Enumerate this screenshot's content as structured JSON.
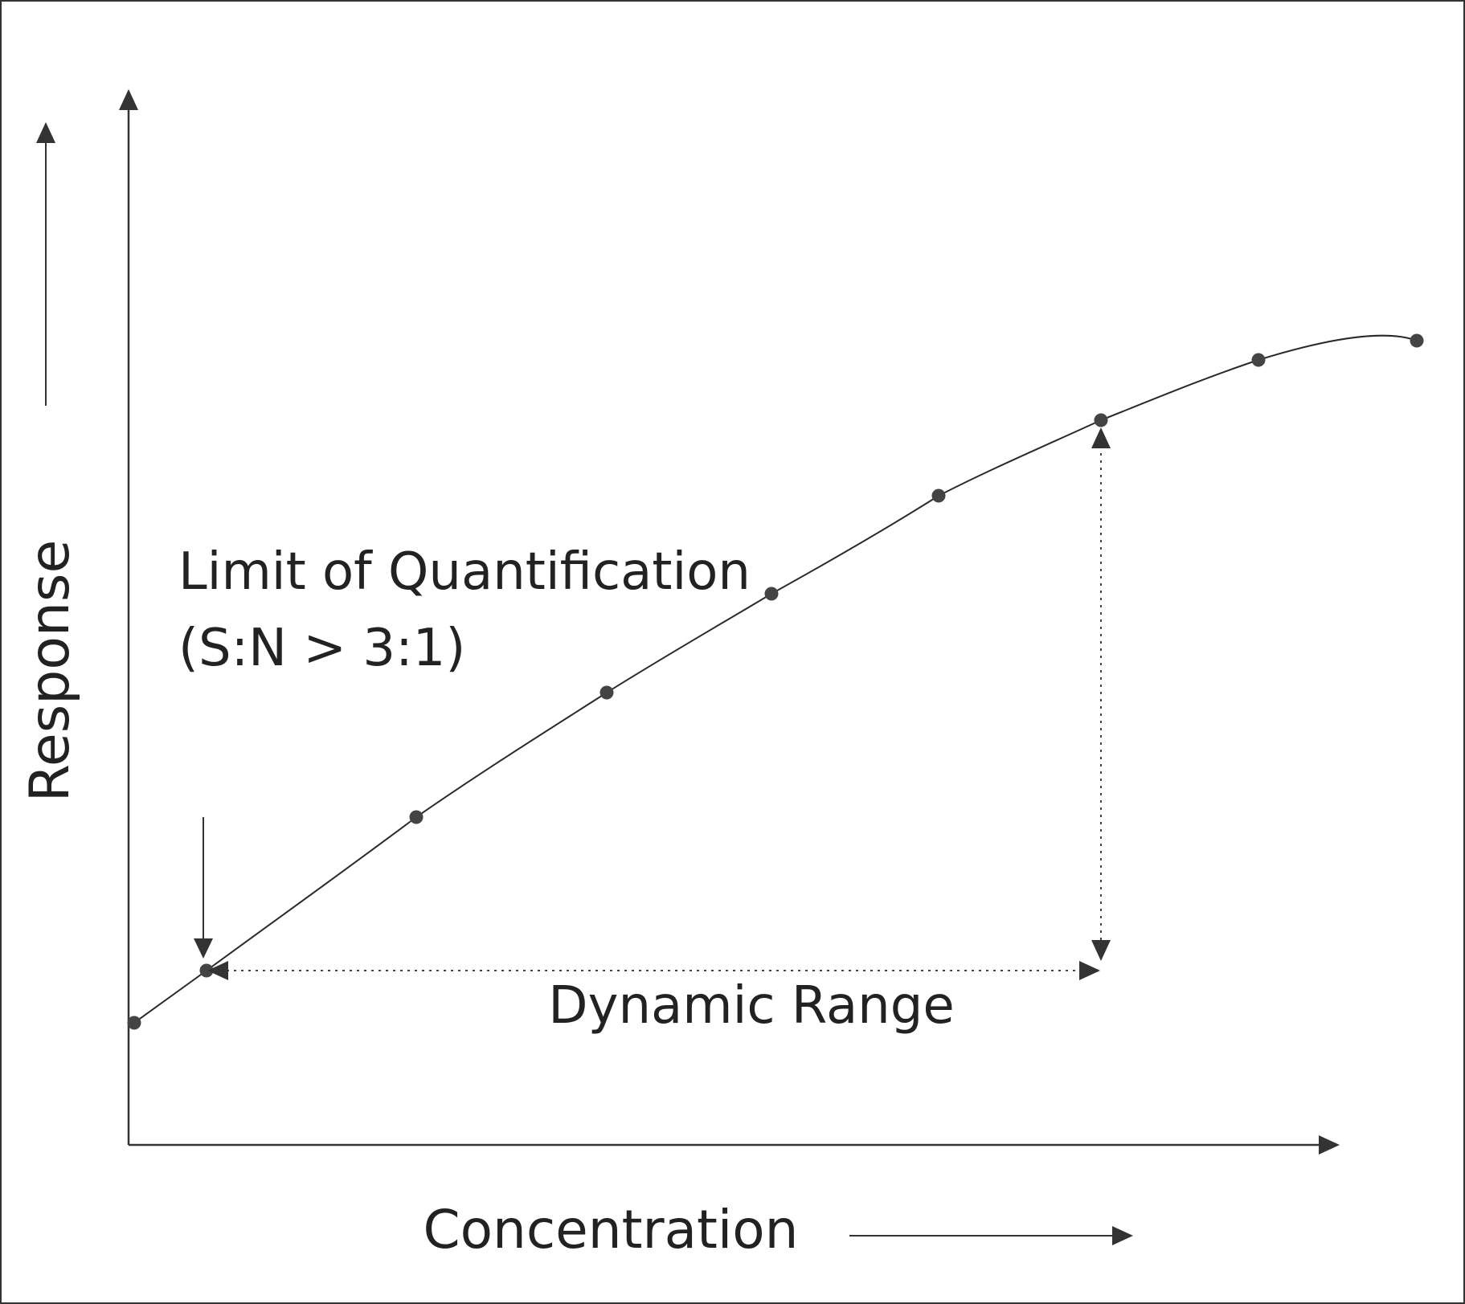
{
  "diagram": {
    "axis_labels": {
      "y": "Response",
      "x": "Concentration"
    },
    "annotations": {
      "loq_line1": "Limit of Quantification",
      "loq_line2": "(S:N > 3:1)",
      "dynamic_range": "Dynamic Range"
    },
    "colors": {
      "line": "#333333",
      "point": "#444444",
      "text": "#222222",
      "background": "#ffffff"
    }
  }
}
